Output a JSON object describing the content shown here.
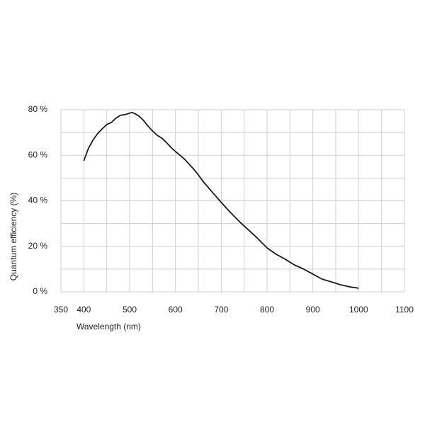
{
  "chart_data": {
    "type": "line",
    "x_label": "Wavelength (nm)",
    "y_label": "Quantum efficiency (%)",
    "series": [
      {
        "name": "Quantum efficiency",
        "color": "#1a1a1a",
        "x": [
          400,
          410,
          420,
          430,
          440,
          450,
          460,
          470,
          480,
          490,
          500,
          505,
          510,
          520,
          530,
          540,
          550,
          560,
          570,
          580,
          590,
          600,
          620,
          640,
          650,
          660,
          680,
          700,
          720,
          740,
          760,
          780,
          800,
          820,
          840,
          860,
          880,
          900,
          920,
          940,
          960,
          980,
          1000
        ],
        "values": [
          57.6,
          63,
          66.7,
          69.5,
          71.6,
          73.5,
          74.4,
          76.3,
          77.6,
          77.9,
          78.5,
          78.8,
          78.5,
          77.3,
          75.4,
          72.9,
          70.7,
          68.8,
          67.6,
          65.7,
          63.5,
          61.7,
          58.3,
          53.9,
          51.4,
          48.6,
          43.9,
          39.3,
          34.9,
          30.8,
          27.1,
          23.4,
          19.3,
          16.5,
          14.3,
          11.8,
          10,
          7.8,
          5.6,
          4.4,
          3.1,
          2.2,
          1.6
        ]
      }
    ],
    "xlim": [
      350,
      1100
    ],
    "ylim": [
      0,
      80
    ],
    "xticks": [
      350,
      400,
      500,
      600,
      700,
      800,
      900,
      1000,
      1100
    ],
    "x_minor_grid": [
      450,
      550,
      650,
      750,
      850,
      950,
      1050
    ],
    "yticks": [
      {
        "value": 0,
        "label": "0 %"
      },
      {
        "value": 20,
        "label": "20 %"
      },
      {
        "value": 40,
        "label": "40 %"
      },
      {
        "value": 60,
        "label": "60 %"
      },
      {
        "value": 80,
        "label": "80 %"
      }
    ],
    "y_minor_grid": [
      10,
      30,
      50,
      70
    ],
    "grid": true
  }
}
